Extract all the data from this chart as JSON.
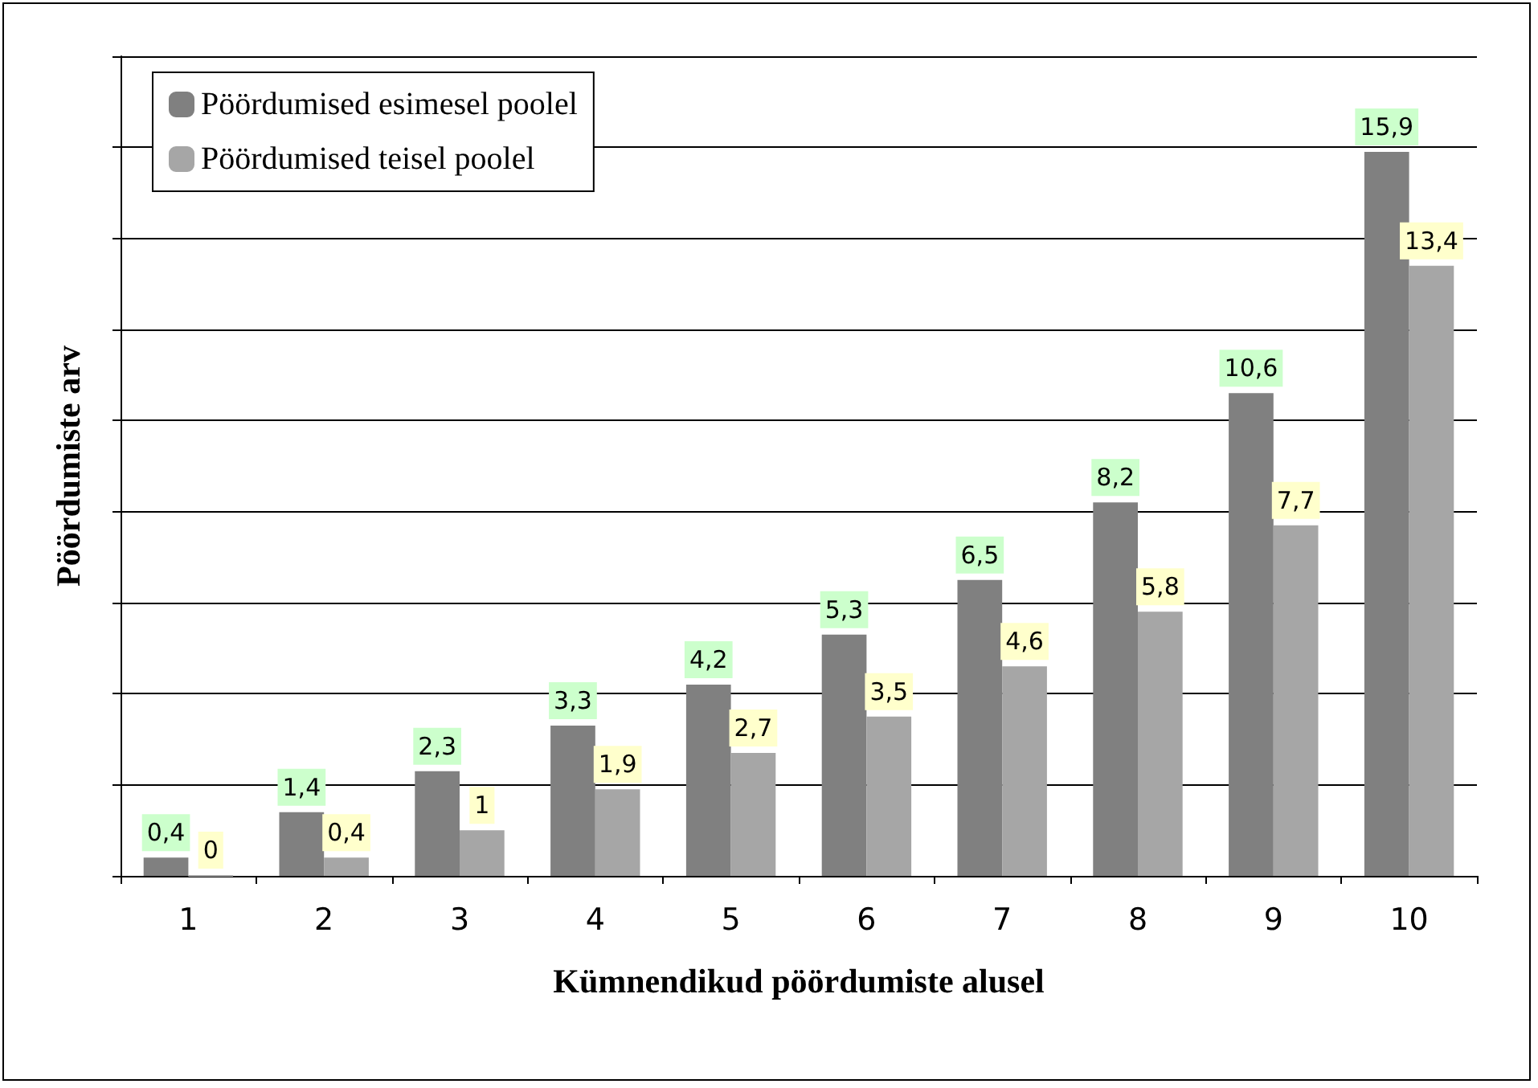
{
  "chart_data": {
    "type": "bar",
    "xlabel": "Kümnendikud pöördumiste alusel",
    "ylabel": "Pöördumiste arv",
    "categories": [
      "1",
      "2",
      "3",
      "4",
      "5",
      "6",
      "7",
      "8",
      "9",
      "10"
    ],
    "series": [
      {
        "name": "Pöördumised esimesel poolel",
        "color": "#808080",
        "values": [
          0.4,
          1.4,
          2.3,
          3.3,
          4.2,
          5.3,
          6.5,
          8.2,
          10.6,
          15.9
        ],
        "value_labels": [
          "0,4",
          "1,4",
          "2,3",
          "3,3",
          "4,2",
          "5,3",
          "6,5",
          "8,2",
          "10,6",
          "15,9"
        ]
      },
      {
        "name": "Pöördumised teisel poolel",
        "color": "#a6a6a6",
        "values": [
          0,
          0.4,
          1,
          1.9,
          2.7,
          3.5,
          4.6,
          5.8,
          7.7,
          13.4
        ],
        "value_labels": [
          "0",
          "0,4",
          "1",
          "1,9",
          "2,7",
          "3,5",
          "4,6",
          "5,8",
          "7,7",
          "13,4"
        ]
      }
    ],
    "ylim": [
      0,
      18
    ],
    "tick_labels": "x",
    "grid": "y",
    "legend": "top left"
  }
}
